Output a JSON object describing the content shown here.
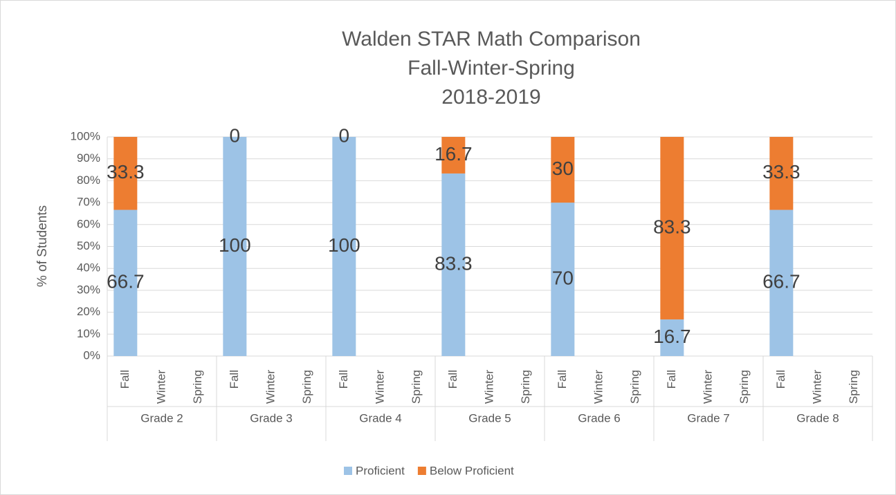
{
  "chart_data": {
    "type": "stacked_bar",
    "title_lines": [
      "Walden STAR Math Comparison",
      "Fall-Winter-Spring",
      "2018-2019"
    ],
    "y_label": "% of Students",
    "categories": [
      "Fall",
      "Winter",
      "Spring",
      "Fall",
      "Winter",
      "Spring",
      "Fall",
      "Winter",
      "Spring",
      "Fall",
      "Winter",
      "Spring",
      "Fall",
      "Winter",
      "Spring",
      "Fall",
      "Winter",
      "Spring",
      "Fall",
      "Winter",
      "Spring"
    ],
    "groups": [
      "Grade 2",
      "Grade 3",
      "Grade 4",
      "Grade 5",
      "Grade 6",
      "Grade 7",
      "Grade 8"
    ],
    "series": [
      {
        "name": "Proficient",
        "color": "#9dc3e6",
        "values": [
          66.7,
          null,
          null,
          100,
          null,
          null,
          100,
          null,
          null,
          83.3,
          null,
          null,
          70,
          null,
          null,
          16.7,
          null,
          null,
          66.7,
          null,
          null
        ]
      },
      {
        "name": "Below Proficient",
        "color": "#ed7d31",
        "values": [
          33.3,
          null,
          null,
          0,
          null,
          null,
          0,
          null,
          null,
          16.7,
          null,
          null,
          30,
          null,
          null,
          83.3,
          null,
          null,
          33.3,
          null,
          null
        ]
      }
    ],
    "ylim": [
      0,
      100
    ],
    "yticks": [
      {
        "value": 0,
        "label": "0%"
      },
      {
        "value": 10,
        "label": "10%"
      },
      {
        "value": 20,
        "label": "20%"
      },
      {
        "value": 30,
        "label": "30%"
      },
      {
        "value": 40,
        "label": "40%"
      },
      {
        "value": 50,
        "label": "50%"
      },
      {
        "value": 60,
        "label": "60%"
      },
      {
        "value": 70,
        "label": "70%"
      },
      {
        "value": 80,
        "label": "80%"
      },
      {
        "value": 90,
        "label": "90%"
      },
      {
        "value": 100,
        "label": "100%"
      }
    ],
    "grid": true,
    "legend": "bottom"
  }
}
